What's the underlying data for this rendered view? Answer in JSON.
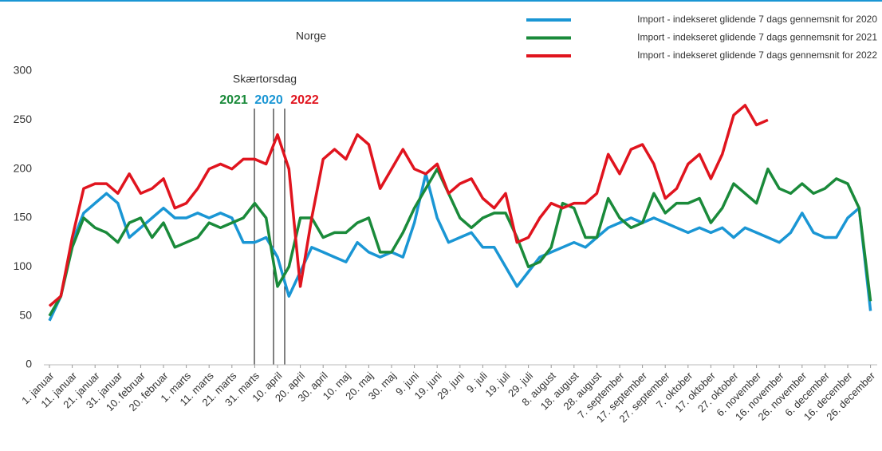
{
  "chart_data": {
    "type": "line",
    "title": "Norge",
    "categories": [
      "1. januar",
      null,
      "11. januar",
      null,
      "21. januar",
      null,
      "31. januar",
      null,
      "10. februar",
      null,
      "20. februar",
      null,
      "1. marts",
      null,
      "11. marts",
      null,
      "21. marts",
      null,
      "31. marts",
      null,
      "10. april",
      null,
      "20. april",
      null,
      "30. april",
      null,
      "10. maj",
      null,
      "20. maj",
      null,
      "30. maj",
      null,
      "9. juni",
      null,
      "19. juni",
      null,
      "29. juni",
      null,
      "9. juli",
      null,
      "19. juli",
      null,
      "29. juli",
      null,
      "8. august",
      null,
      "18. august",
      null,
      "28. august",
      null,
      "7. september",
      null,
      "17. september",
      null,
      "27. september",
      null,
      "7. oktober",
      null,
      "17. oktober",
      null,
      "27. oktober",
      null,
      "6. november",
      null,
      "16. november",
      null,
      "26. november",
      null,
      "6. december",
      null,
      "16. december",
      null,
      "26. december"
    ],
    "series": [
      {
        "name": "Import - indekseret glidende 7 dags gennemsnit for 2020",
        "color": "#1a96d4",
        "values": [
          45,
          70,
          125,
          155,
          165,
          175,
          165,
          130,
          140,
          150,
          160,
          150,
          150,
          155,
          150,
          155,
          150,
          125,
          125,
          130,
          110,
          70,
          95,
          120,
          115,
          110,
          105,
          125,
          115,
          110,
          115,
          110,
          145,
          195,
          150,
          125,
          130,
          135,
          120,
          120,
          100,
          80,
          95,
          110,
          115,
          120,
          125,
          120,
          130,
          140,
          145,
          150,
          145,
          150,
          145,
          140,
          135,
          140,
          135,
          140,
          130,
          140,
          135,
          130,
          125,
          135,
          155,
          135,
          130,
          130,
          150,
          160,
          55
        ]
      },
      {
        "name": "Import - indekseret glidende 7 dags gennemsnit for 2021",
        "color": "#1a8a3a",
        "values": [
          50,
          70,
          120,
          150,
          140,
          135,
          125,
          145,
          150,
          130,
          145,
          120,
          125,
          130,
          145,
          140,
          145,
          150,
          165,
          150,
          80,
          100,
          150,
          150,
          130,
          135,
          135,
          145,
          150,
          115,
          115,
          135,
          160,
          180,
          200,
          175,
          150,
          140,
          150,
          155,
          155,
          130,
          100,
          105,
          120,
          165,
          160,
          130,
          130,
          170,
          150,
          140,
          145,
          175,
          155,
          165,
          165,
          170,
          145,
          160,
          185,
          175,
          165,
          200,
          180,
          175,
          185,
          175,
          180,
          190,
          185,
          160,
          65
        ]
      },
      {
        "name": "Import - indekseret glidende 7 dags gennemsnit for 2022",
        "color": "#e0141e",
        "values": [
          60,
          70,
          130,
          180,
          185,
          185,
          175,
          195,
          175,
          180,
          190,
          160,
          165,
          180,
          200,
          205,
          200,
          210,
          210,
          205,
          235,
          200,
          80,
          150,
          210,
          220,
          210,
          235,
          225,
          180,
          200,
          220,
          200,
          195,
          205,
          175,
          185,
          190,
          170,
          160,
          175,
          125,
          130,
          150,
          165,
          160,
          165,
          165,
          175,
          215,
          195,
          220,
          225,
          205,
          170,
          180,
          205,
          215,
          190,
          215,
          255,
          265,
          245,
          250,
          null,
          null,
          null,
          null,
          null,
          null,
          null,
          null,
          null
        ]
      }
    ],
    "ylim": [
      0,
      300
    ],
    "yticks": [
      0,
      50,
      100,
      150,
      200,
      250,
      300
    ],
    "annotation": {
      "text": "Skærtorsdag",
      "years": [
        "2021",
        "2020",
        "2022"
      ]
    }
  }
}
